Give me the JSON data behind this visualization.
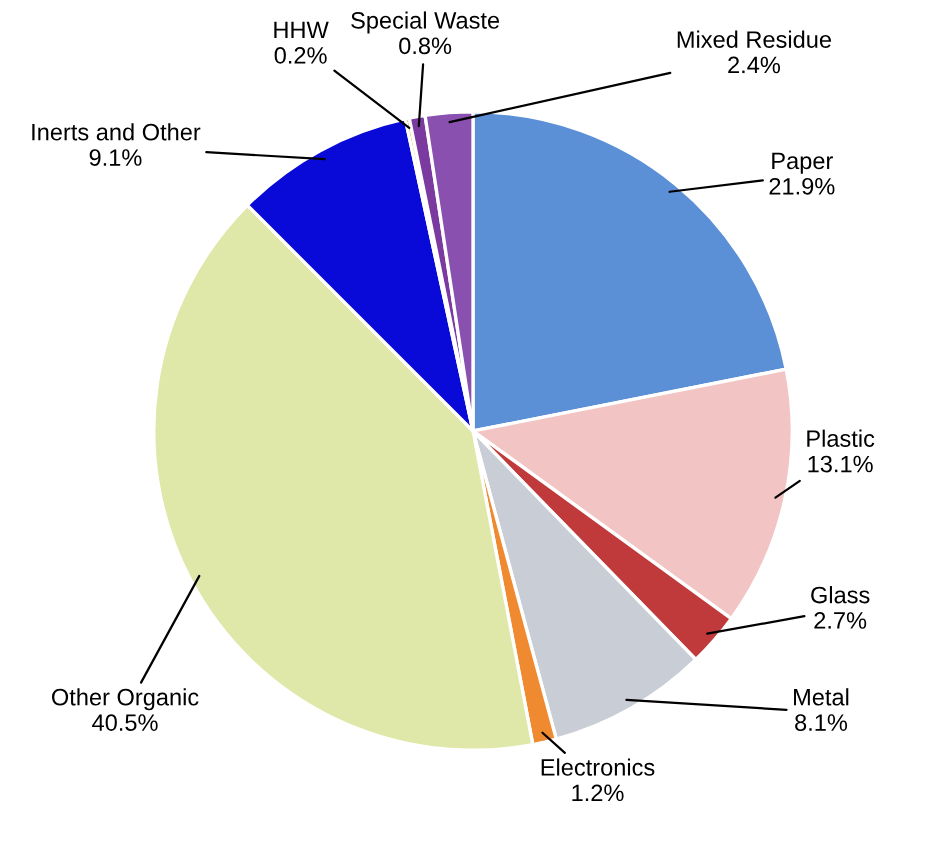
{
  "chart_data": {
    "type": "pie",
    "categories": [
      "Paper",
      "Plastic",
      "Glass",
      "Metal",
      "Electronics",
      "Other Organic",
      "Inerts and Other",
      "HHW",
      "Special Waste",
      "Mixed Residue"
    ],
    "values": [
      21.9,
      13.1,
      2.7,
      8.1,
      1.2,
      40.5,
      9.1,
      0.2,
      0.8,
      2.4
    ],
    "value_labels": [
      "21.9%",
      "13.1%",
      "2.7%",
      "8.1%",
      "1.2%",
      "40.5%",
      "9.1%",
      "0.2%",
      "0.8%",
      "2.4%"
    ],
    "colors": [
      "#5b8fd6",
      "#f2c4c4",
      "#c0393b",
      "#c9cdd6",
      "#f08a30",
      "#dfe8a8",
      "#0a0ad8",
      "#f0a020",
      "#7a3aa0",
      "#8a50b0"
    ]
  }
}
